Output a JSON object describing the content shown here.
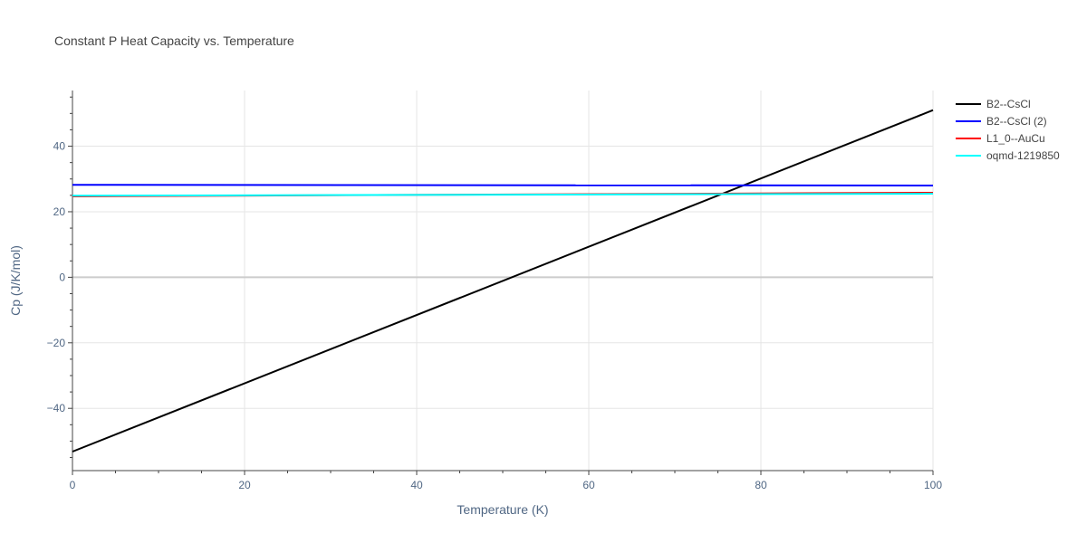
{
  "chart_data": {
    "type": "line",
    "title": "Constant P Heat Capacity vs. Temperature",
    "xlabel": "Temperature (K)",
    "ylabel": "Cp (J/K/mol)",
    "xlim": [
      0,
      100
    ],
    "ylim": [
      -59,
      57
    ],
    "x_ticks": [
      0,
      20,
      40,
      60,
      80,
      100
    ],
    "x_tick_labels": [
      "0",
      "20",
      "40",
      "60",
      "80",
      "100"
    ],
    "y_ticks": [
      -40,
      -20,
      0,
      20,
      40
    ],
    "y_tick_labels": [
      "−40",
      "−20",
      "0",
      "20",
      "40"
    ],
    "grid": true,
    "legend_position": "right",
    "series": [
      {
        "name": "B2--CsCl",
        "color": "#000000",
        "x": [
          0,
          100
        ],
        "y": [
          -53.2,
          51.0
        ]
      },
      {
        "name": "B2--CsCl (2)",
        "color": "#0000ff",
        "x": [
          0,
          100
        ],
        "y": [
          28.2,
          28.0
        ]
      },
      {
        "name": "L1_0--AuCu",
        "color": "#ff0000",
        "x": [
          0,
          100
        ],
        "y": [
          24.7,
          25.8
        ]
      },
      {
        "name": "oqmd-1219850",
        "color": "#00ffff",
        "x": [
          0,
          100
        ],
        "y": [
          24.9,
          25.5
        ]
      }
    ]
  }
}
